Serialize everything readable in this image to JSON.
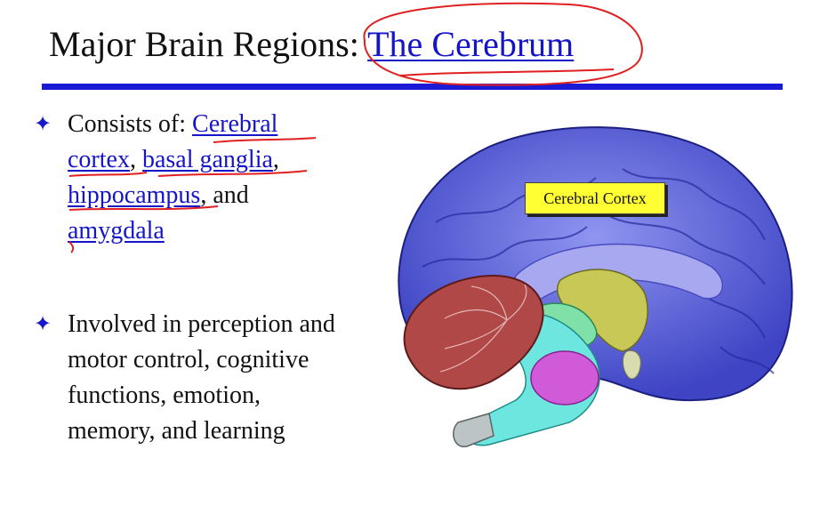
{
  "slide": {
    "title_plain": "Major Brain Regions: ",
    "title_link": "The Cerebrum",
    "bullet_mark": "✦",
    "bullet1": {
      "prefix": "Consists of: ",
      "items": [
        "Cerebral cortex",
        "basal ganglia",
        "hippocampus",
        "amygdala"
      ],
      "sep1": ", ",
      "sep2": ", ",
      "sep3": ", and "
    },
    "bullet2": "Involved in perception and motor control, cognitive functions, emotion, memory, and learning",
    "image_label": "Cerebral Cortex"
  },
  "colors": {
    "link": "#1515c8",
    "rule": "#1a1ad6",
    "annotation": "#e02020",
    "label_bg": "#ffff33"
  }
}
